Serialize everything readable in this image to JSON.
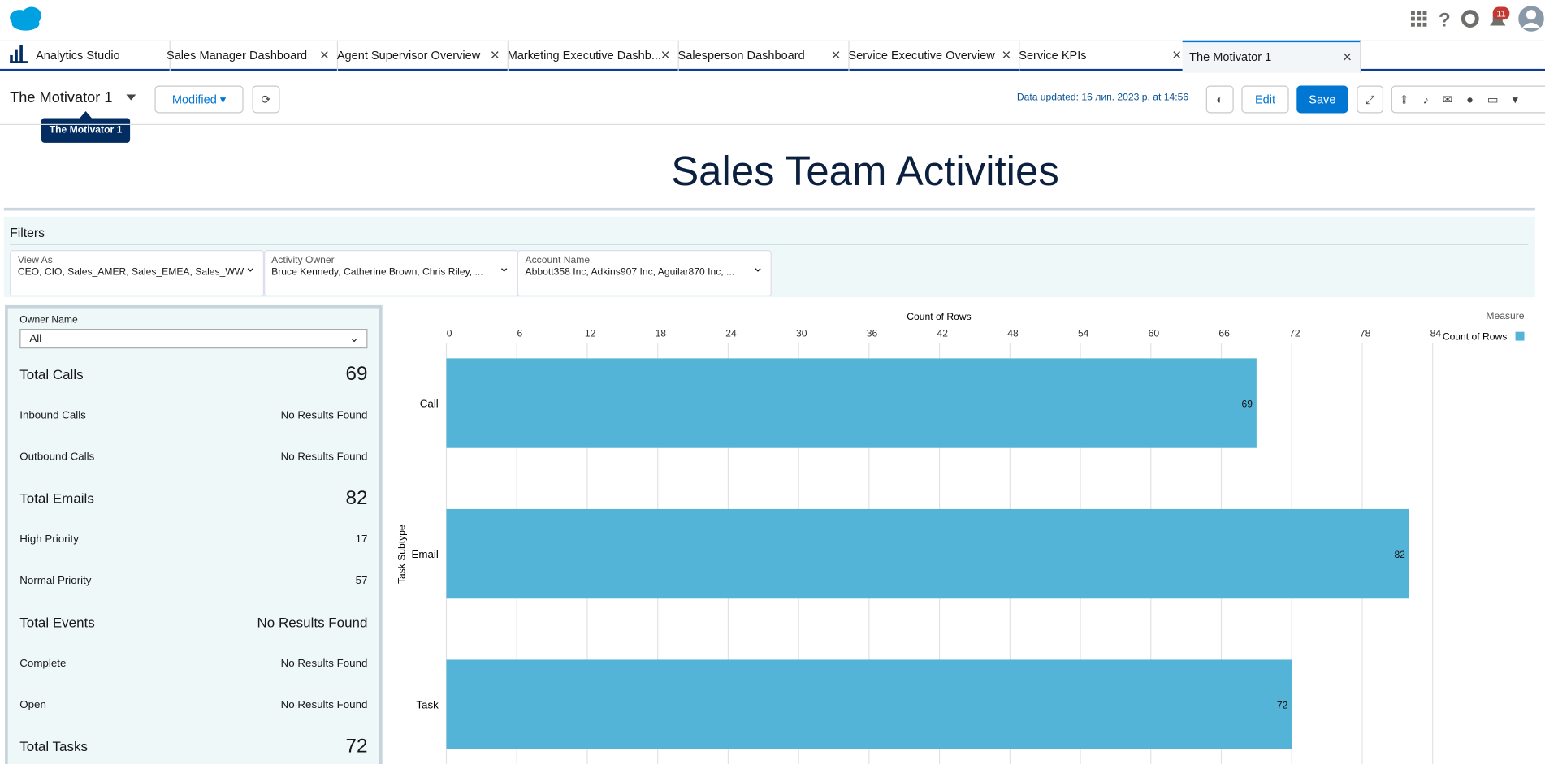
{
  "header": {
    "notification_count": 11
  },
  "tabs": {
    "app": "Analytics Studio",
    "items": [
      "Sales Manager Dashboard",
      "Agent Supervisor Overview",
      "Marketing Executive Dashb...",
      "Salesperson Dashboard",
      "Service Executive Overview",
      "Service KPIs",
      "The Motivator 1"
    ]
  },
  "toolbar": {
    "title": "The Motivator 1",
    "tooltip": "The Motivator 1",
    "status": "Modified",
    "data_updated": "Data updated: 16 лип. 2023 р. at 14:56",
    "edit": "Edit",
    "save": "Save"
  },
  "dashboard": {
    "title": "Sales Team Activities",
    "filters_title": "Filters",
    "filters": [
      {
        "label": "View As",
        "value": "CEO, CIO, Sales_AMER, Sales_EMEA, Sales_WW"
      },
      {
        "label": "Activity Owner",
        "value": "Bruce Kennedy, Catherine Brown, Chris Riley, ..."
      },
      {
        "label": "Account Name",
        "value": "Abbott358 Inc, Adkins907 Inc, Aguilar870 Inc, ..."
      }
    ],
    "owner_filter": {
      "label": "Owner Name",
      "value": "All"
    },
    "metrics": [
      {
        "label": "Total Calls",
        "value": 69,
        "items": [
          {
            "label": "Inbound Calls",
            "value": "No Results Found"
          },
          {
            "label": "Outbound Calls",
            "value": "No Results Found"
          }
        ]
      },
      {
        "label": "Total Emails",
        "value": 82,
        "items": [
          {
            "label": "High Priority",
            "value": 17
          },
          {
            "label": "Normal Priority",
            "value": 57
          }
        ]
      },
      {
        "label": "Total Events",
        "value": "No Results Found",
        "items": [
          {
            "label": "Complete",
            "value": "No Results Found"
          },
          {
            "label": "Open",
            "value": "No Results Found"
          }
        ]
      },
      {
        "label": "Total Tasks",
        "value": 72,
        "items": []
      }
    ]
  },
  "chart_data": {
    "type": "bar",
    "orientation": "horizontal",
    "x_label": "Count of Rows",
    "y_label": "Task Subtype",
    "legend_title": "Measure",
    "legend": "top-right",
    "categories": [
      "Call",
      "Email",
      "Task"
    ],
    "series": [
      {
        "name": "Count of Rows",
        "color": "#54b4d8",
        "values": [
          69,
          82,
          72
        ]
      }
    ],
    "xlim": [
      0,
      84
    ],
    "xticks": [
      0,
      6,
      12,
      18,
      24,
      30,
      36,
      42,
      48,
      54,
      60,
      66,
      72,
      78,
      84
    ],
    "grid": true,
    "data_labels": true
  }
}
